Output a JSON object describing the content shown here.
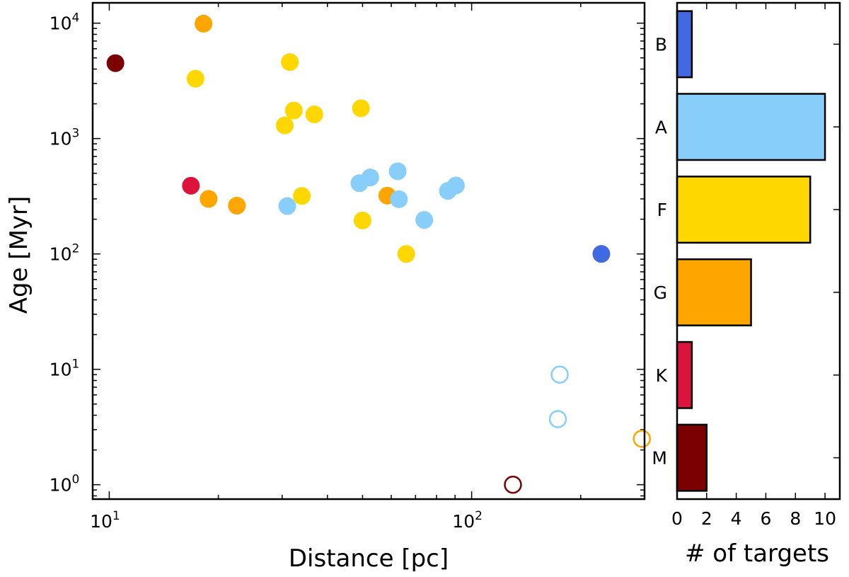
{
  "chart_data": [
    {
      "type": "scatter",
      "xlabel": "Distance [pc]",
      "ylabel": "Age [Myr]",
      "xscale": "log",
      "yscale": "log",
      "xlim": [
        9,
        300
      ],
      "ylim": [
        0.75,
        15000
      ],
      "xticks": [
        {
          "value": 10,
          "base": "10",
          "exp": "1"
        },
        {
          "value": 100,
          "base": "10",
          "exp": "2"
        }
      ],
      "yticks": [
        {
          "value": 1,
          "base": "10",
          "exp": "0"
        },
        {
          "value": 10,
          "base": "10",
          "exp": "1"
        },
        {
          "value": 100,
          "base": "10",
          "exp": "2"
        },
        {
          "value": 1000,
          "base": "10",
          "exp": "3"
        },
        {
          "value": 10000,
          "base": "10",
          "exp": "4"
        }
      ],
      "series": [
        {
          "name": "M",
          "color": "#7b0000",
          "points": [
            {
              "x": 10.4,
              "y": 4500,
              "filled": true
            },
            {
              "x": 130,
              "y": 1.0,
              "filled": false
            }
          ]
        },
        {
          "name": "K",
          "color": "#dc143c",
          "points": [
            {
              "x": 16.8,
              "y": 390,
              "filled": true
            }
          ]
        },
        {
          "name": "G",
          "color": "#ffa500",
          "points": [
            {
              "x": 18.2,
              "y": 9900,
              "filled": true
            },
            {
              "x": 18.8,
              "y": 300,
              "filled": true
            },
            {
              "x": 22.5,
              "y": 262,
              "filled": true
            },
            {
              "x": 58.5,
              "y": 320,
              "filled": true
            },
            {
              "x": 295,
              "y": 2.5,
              "filled": false
            }
          ]
        },
        {
          "name": "F",
          "color": "#ffd700",
          "points": [
            {
              "x": 17.3,
              "y": 3300,
              "filled": true
            },
            {
              "x": 30.5,
              "y": 1300,
              "filled": true
            },
            {
              "x": 32.3,
              "y": 1750,
              "filled": true
            },
            {
              "x": 31.5,
              "y": 4600,
              "filled": true
            },
            {
              "x": 36.8,
              "y": 1620,
              "filled": true
            },
            {
              "x": 34.0,
              "y": 318,
              "filled": true
            },
            {
              "x": 49.5,
              "y": 1830,
              "filled": true
            },
            {
              "x": 50.0,
              "y": 195,
              "filled": true
            },
            {
              "x": 66.0,
              "y": 100,
              "filled": true
            }
          ]
        },
        {
          "name": "A",
          "color": "#87cefa",
          "points": [
            {
              "x": 31.0,
              "y": 260,
              "filled": true
            },
            {
              "x": 49.0,
              "y": 410,
              "filled": true
            },
            {
              "x": 52.5,
              "y": 460,
              "filled": true
            },
            {
              "x": 62.5,
              "y": 520,
              "filled": true
            },
            {
              "x": 63.0,
              "y": 298,
              "filled": true
            },
            {
              "x": 74.0,
              "y": 197,
              "filled": true
            },
            {
              "x": 86.0,
              "y": 352,
              "filled": true
            },
            {
              "x": 90.5,
              "y": 392,
              "filled": true
            },
            {
              "x": 175,
              "y": 9.0,
              "filled": false
            },
            {
              "x": 173,
              "y": 3.7,
              "filled": false
            }
          ]
        },
        {
          "name": "B",
          "color": "#4169e1",
          "points": [
            {
              "x": 228,
              "y": 100,
              "filled": true
            }
          ]
        }
      ]
    },
    {
      "type": "bar",
      "orientation": "horizontal",
      "xlabel": "# of targets",
      "ylabel": "",
      "categories": [
        "B",
        "A",
        "F",
        "G",
        "K",
        "M"
      ],
      "values": [
        1,
        10,
        9,
        5,
        1,
        2
      ],
      "colors": [
        "#4169e1",
        "#87cefa",
        "#ffd700",
        "#ffa500",
        "#dc143c",
        "#7b0000"
      ],
      "xlim": [
        0,
        11
      ],
      "xticks": [
        "0",
        "2",
        "4",
        "6",
        "8",
        "10"
      ]
    }
  ]
}
